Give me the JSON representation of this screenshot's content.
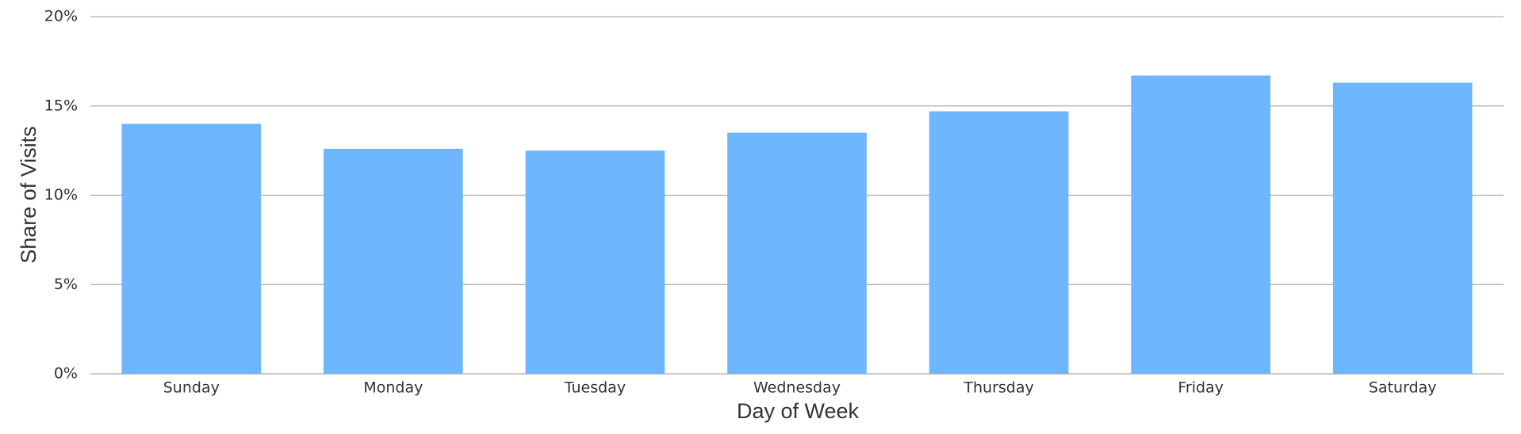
{
  "chart_data": {
    "type": "bar",
    "x_label": "Day of Week",
    "y_label": "Share of Visits",
    "categories": [
      "Sunday",
      "Monday",
      "Tuesday",
      "Wednesday",
      "Thursday",
      "Friday",
      "Saturday"
    ],
    "values": [
      14.0,
      12.6,
      12.5,
      13.5,
      14.7,
      16.7,
      16.3
    ],
    "color": "#6eb6fd",
    "ylim": [
      0,
      20
    ],
    "yticks": [
      {
        "value": 0,
        "label": "0%"
      },
      {
        "value": 5,
        "label": "5%"
      },
      {
        "value": 10,
        "label": "10%"
      },
      {
        "value": 15,
        "label": "15%"
      },
      {
        "value": 20,
        "label": "20%"
      }
    ],
    "grid": true
  }
}
